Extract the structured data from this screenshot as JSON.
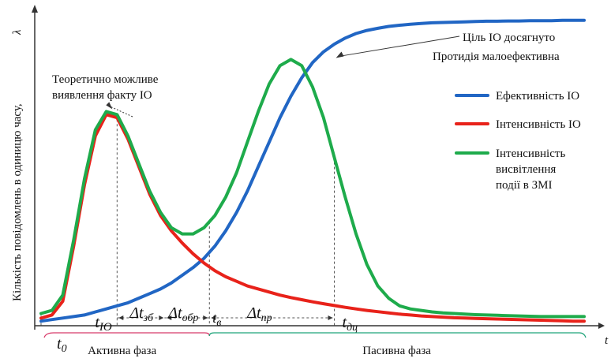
{
  "chart_data": {
    "type": "line",
    "title": "",
    "xlabel": "t",
    "ylabel": "Кількість повідомлень в одиницю часу,",
    "ylabel_symbol": "λ",
    "grid": false,
    "legend_position": "right",
    "x": [
      0,
      2,
      4,
      6,
      8,
      10,
      12,
      14,
      16,
      18,
      20,
      22,
      24,
      26,
      28,
      30,
      32,
      34,
      36,
      38,
      40,
      42,
      44,
      46,
      48,
      50,
      52,
      54,
      56,
      58,
      60,
      62,
      64,
      66,
      68,
      70,
      72,
      74,
      76,
      78,
      80,
      82,
      84,
      86,
      88,
      90,
      92,
      94,
      96,
      98,
      100
    ],
    "series": [
      {
        "name": "Ефективність ІО",
        "color": "#2166c4",
        "values": [
          1.5,
          2.0,
          2.5,
          3,
          3.5,
          4.5,
          5.5,
          6.5,
          7.5,
          9,
          10.5,
          12,
          14,
          16.5,
          19,
          22,
          26,
          31,
          37,
          44,
          52,
          60,
          68,
          75,
          81,
          86,
          89.5,
          92,
          94,
          95.5,
          96.5,
          97.2,
          97.8,
          98.2,
          98.5,
          98.8,
          99,
          99.1,
          99.2,
          99.3,
          99.4,
          99.5,
          99.5,
          99.6,
          99.6,
          99.7,
          99.7,
          99.7,
          99.8,
          99.8,
          99.8
        ]
      },
      {
        "name": "Інтенсивність ІО",
        "color": "#e8221a",
        "values": [
          2.5,
          3.5,
          8,
          26,
          46,
          62,
          69,
          68,
          61,
          52,
          43,
          36,
          31,
          27,
          23.5,
          20.5,
          18,
          16,
          14.5,
          13,
          12,
          11,
          10,
          9.2,
          8.5,
          7.8,
          7.2,
          6.6,
          6,
          5.5,
          5,
          4.6,
          4.2,
          3.8,
          3.5,
          3.2,
          3,
          2.8,
          2.6,
          2.5,
          2.4,
          2.3,
          2.2,
          2.1,
          2,
          1.9,
          1.8,
          1.7,
          1.6,
          1.5,
          1.5
        ]
      },
      {
        "name": "Інтенсивність висвітлення події в ЗМІ",
        "color": "#1eab4b",
        "values": [
          4,
          5,
          10,
          28,
          48,
          64,
          70,
          69,
          62,
          53,
          44,
          37,
          32,
          30,
          30,
          32,
          36,
          42,
          50,
          60,
          70,
          79,
          85,
          87,
          85,
          78,
          68,
          55,
          42,
          30,
          20,
          13,
          9,
          6.5,
          5.5,
          5,
          4.5,
          4.2,
          4,
          3.8,
          3.6,
          3.5,
          3.4,
          3.3,
          3.2,
          3.1,
          3,
          3,
          3,
          3,
          3
        ]
      }
    ],
    "markers": [
      {
        "label": "t",
        "sub": "0",
        "x": 0
      },
      {
        "label": "t",
        "sub": "ІО",
        "x": 14
      },
      {
        "label": "t",
        "sub": "в",
        "x": 31
      },
      {
        "label": "t",
        "sub": "дц",
        "x": 54
      }
    ],
    "intervals": [
      {
        "label": "Δt",
        "sub": "зб"
      },
      {
        "label": "Δt",
        "sub": "обр"
      },
      {
        "label": "Δt",
        "sub": "пр"
      }
    ],
    "annotations": {
      "possible_detection": [
        "Теоретично можливе",
        "виявлення факту ІО"
      ],
      "goal_reached": [
        "Ціль ІО досягнуто",
        "Протидія малоефективна"
      ]
    },
    "phases": {
      "active": "Активна фаза",
      "passive": "Пасивна фаза"
    },
    "legend_lines": [
      [
        "Ефективність ІО"
      ],
      [
        "Інтенсивність ІО"
      ],
      [
        "Інтенсивність",
        "висвітлення",
        "події в ЗМІ"
      ]
    ]
  }
}
